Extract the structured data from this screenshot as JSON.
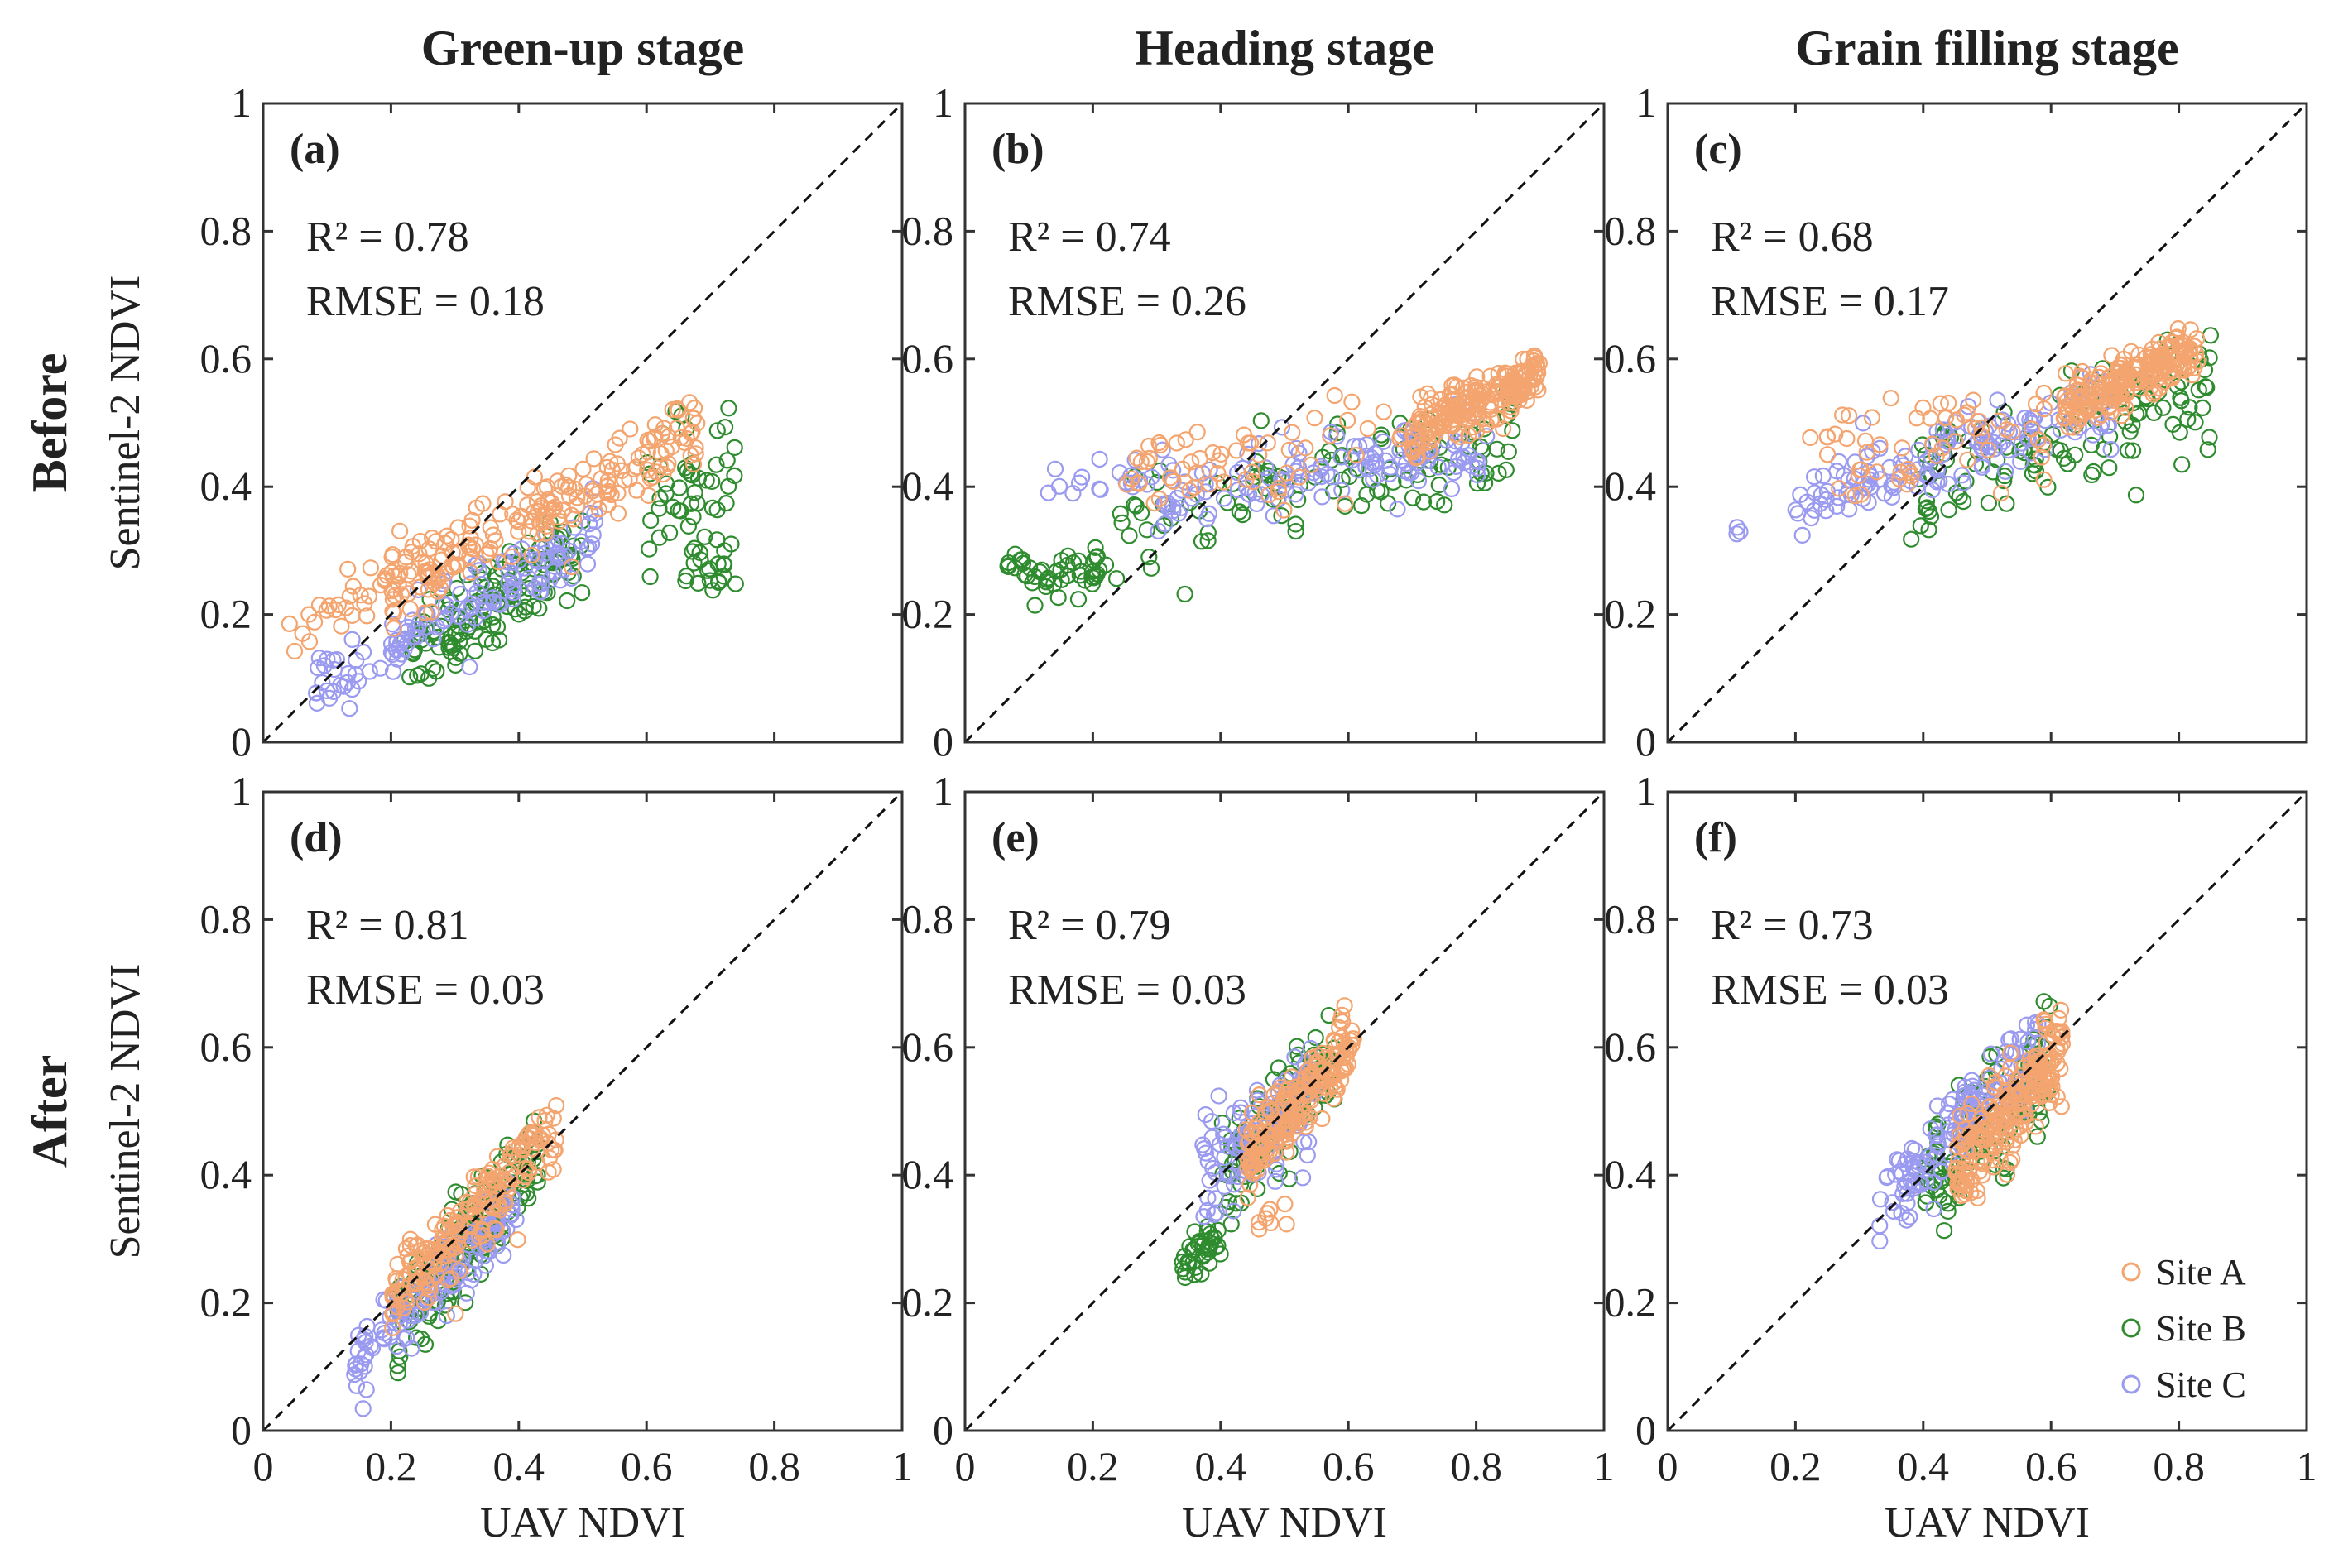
{
  "chart_data": {
    "type": "scatter",
    "column_titles": [
      "Green-up stage",
      "Heading stage",
      "Grain filling stage"
    ],
    "row_titles": [
      "Before",
      "After"
    ],
    "xlabel": "UAV NDVI",
    "ylabel": "Sentinel-2 NDVI",
    "xlim": [
      0,
      1
    ],
    "ylim": [
      0,
      1
    ],
    "ticks": [
      "0",
      "0.2",
      "0.4",
      "0.6",
      "0.8",
      "1"
    ],
    "tick_values": [
      0,
      0.2,
      0.4,
      0.6,
      0.8,
      1
    ],
    "reference_line": "1:1",
    "legend": {
      "position": "bottom-right",
      "entries": [
        {
          "name": "Site A",
          "color": "#F4A46E"
        },
        {
          "name": "Site B",
          "color": "#2E8B2E"
        },
        {
          "name": "Site C",
          "color": "#9A9AF0"
        }
      ]
    },
    "panels": [
      {
        "label": "(a)",
        "stage": "Green-up stage",
        "row": "Before",
        "r2_text": "R² = 0.78",
        "rmse_text": "RMSE = 0.18",
        "series": [
          {
            "name": "Site B",
            "color": "#2E8B2E",
            "clusters": [
              {
                "x": [
                  0.22,
                  0.5
                ],
                "slope": 0.6,
                "intercept": 0.0,
                "spread": 0.035,
                "n": 130
              },
              {
                "x": [
                  0.6,
                  0.75
                ],
                "slope": 0.6,
                "intercept": 0.0,
                "spread": 0.05,
                "n": 45
              },
              {
                "x": [
                  0.66,
                  0.74
                ],
                "slope": 0.0,
                "intercept": 0.28,
                "spread": 0.025,
                "n": 22
              }
            ]
          },
          {
            "name": "Site C",
            "color": "#9A9AF0",
            "clusters": [
              {
                "x": [
                  0.08,
                  0.52
                ],
                "slope": 0.55,
                "intercept": 0.04,
                "spread": 0.025,
                "n": 140
              }
            ]
          },
          {
            "name": "Site A",
            "color": "#F4A46E",
            "clusters": [
              {
                "x": [
                  0.2,
                  0.69
                ],
                "slope": 0.5,
                "intercept": 0.14,
                "spread": 0.03,
                "n": 200
              },
              {
                "x": [
                  0.03,
                  0.22
                ],
                "slope": 0.6,
                "intercept": 0.13,
                "spread": 0.03,
                "n": 30
              }
            ]
          }
        ]
      },
      {
        "label": "(b)",
        "stage": "Heading stage",
        "row": "Before",
        "r2_text": "R² = 0.74",
        "rmse_text": "RMSE = 0.26",
        "series": [
          {
            "name": "Site B",
            "color": "#2E8B2E",
            "clusters": [
              {
                "x": [
                  0.06,
                  0.24
                ],
                "slope": 0.05,
                "intercept": 0.26,
                "spread": 0.018,
                "n": 50
              },
              {
                "x": [
                  0.24,
                  0.88
                ],
                "slope": 0.25,
                "intercept": 0.28,
                "spread": 0.04,
                "n": 110
              }
            ]
          },
          {
            "name": "Site C",
            "color": "#9A9AF0",
            "clusters": [
              {
                "x": [
                  0.3,
                  0.82
                ],
                "slope": 0.15,
                "intercept": 0.34,
                "spread": 0.025,
                "n": 130
              },
              {
                "x": [
                  0.12,
                  0.3
                ],
                "slope": 0.05,
                "intercept": 0.4,
                "spread": 0.015,
                "n": 18
              }
            ]
          },
          {
            "name": "Site A",
            "color": "#F4A46E",
            "clusters": [
              {
                "x": [
                  0.7,
                  0.9
                ],
                "slope": 0.45,
                "intercept": 0.17,
                "spread": 0.02,
                "n": 200
              },
              {
                "x": [
                  0.25,
                  0.7
                ],
                "slope": 0.1,
                "intercept": 0.4,
                "spread": 0.035,
                "n": 60
              }
            ]
          }
        ]
      },
      {
        "label": "(c)",
        "stage": "Grain filling stage",
        "row": "Before",
        "r2_text": "R² = 0.68",
        "rmse_text": "RMSE = 0.17",
        "series": [
          {
            "name": "Site B",
            "color": "#2E8B2E",
            "clusters": [
              {
                "x": [
                  0.38,
                  0.85
                ],
                "slope": 0.4,
                "intercept": 0.24,
                "spread": 0.045,
                "n": 120
              }
            ]
          },
          {
            "name": "Site C",
            "color": "#9A9AF0",
            "clusters": [
              {
                "x": [
                  0.2,
                  0.7
                ],
                "slope": 0.3,
                "intercept": 0.32,
                "spread": 0.03,
                "n": 140
              },
              {
                "x": [
                  0.1,
                  0.14
                ],
                "slope": 0.0,
                "intercept": 0.33,
                "spread": 0.006,
                "n": 3
              }
            ]
          },
          {
            "name": "Site A",
            "color": "#F4A46E",
            "clusters": [
              {
                "x": [
                  0.62,
                  0.83
                ],
                "slope": 0.45,
                "intercept": 0.24,
                "spread": 0.02,
                "n": 210
              },
              {
                "x": [
                  0.2,
                  0.6
                ],
                "slope": 0.15,
                "intercept": 0.4,
                "spread": 0.04,
                "n": 60
              }
            ]
          }
        ]
      },
      {
        "label": "(d)",
        "stage": "Green-up stage",
        "row": "After",
        "r2_text": "R² = 0.81",
        "rmse_text": "RMSE = 0.03",
        "series": [
          {
            "name": "Site B",
            "color": "#2E8B2E",
            "clusters": [
              {
                "x": [
                  0.21,
                  0.43
                ],
                "slope": 1.3,
                "intercept": -0.12,
                "spread": 0.04,
                "n": 170
              }
            ]
          },
          {
            "name": "Site C",
            "color": "#9A9AF0",
            "clusters": [
              {
                "x": [
                  0.14,
                  0.4
                ],
                "slope": 1.0,
                "intercept": -0.04,
                "spread": 0.03,
                "n": 140
              }
            ]
          },
          {
            "name": "Site A",
            "color": "#F4A46E",
            "clusters": [
              {
                "x": [
                  0.2,
                  0.46
                ],
                "slope": 1.05,
                "intercept": -0.01,
                "spread": 0.03,
                "n": 200
              }
            ]
          }
        ]
      },
      {
        "label": "(e)",
        "stage": "Heading stage",
        "row": "After",
        "r2_text": "R² = 0.79",
        "rmse_text": "RMSE = 0.03",
        "series": [
          {
            "name": "Site B",
            "color": "#2E8B2E",
            "clusters": [
              {
                "x": [
                  0.34,
                  0.4
                ],
                "slope": 0.5,
                "intercept": 0.1,
                "spread": 0.018,
                "n": 35
              },
              {
                "x": [
                  0.4,
                  0.58
                ],
                "slope": 1.0,
                "intercept": 0.0,
                "spread": 0.04,
                "n": 110
              }
            ]
          },
          {
            "name": "Site C",
            "color": "#9A9AF0",
            "clusters": [
              {
                "x": [
                  0.37,
                  0.55
                ],
                "slope": 0.9,
                "intercept": 0.05,
                "spread": 0.04,
                "n": 110
              }
            ]
          },
          {
            "name": "Site A",
            "color": "#F4A46E",
            "clusters": [
              {
                "x": [
                  0.44,
                  0.61
                ],
                "slope": 1.1,
                "intercept": -0.06,
                "spread": 0.03,
                "n": 190
              },
              {
                "x": [
                  0.46,
                  0.52
                ],
                "slope": 0.0,
                "intercept": 0.33,
                "spread": 0.02,
                "n": 8
              }
            ]
          }
        ]
      },
      {
        "label": "(f)",
        "stage": "Grain filling stage",
        "row": "After",
        "r2_text": "R² = 0.73",
        "rmse_text": "RMSE = 0.03",
        "series": [
          {
            "name": "Site B",
            "color": "#2E8B2E",
            "clusters": [
              {
                "x": [
                  0.4,
                  0.6
                ],
                "slope": 1.0,
                "intercept": -0.02,
                "spread": 0.045,
                "n": 120
              }
            ]
          },
          {
            "name": "Site C",
            "color": "#9A9AF0",
            "clusters": [
              {
                "x": [
                  0.33,
                  0.58
                ],
                "slope": 1.0,
                "intercept": 0.02,
                "spread": 0.035,
                "n": 140
              }
            ]
          },
          {
            "name": "Site A",
            "color": "#F4A46E",
            "clusters": [
              {
                "x": [
                  0.45,
                  0.62
                ],
                "slope": 1.2,
                "intercept": -0.14,
                "spread": 0.035,
                "n": 220
              }
            ]
          }
        ]
      }
    ]
  }
}
